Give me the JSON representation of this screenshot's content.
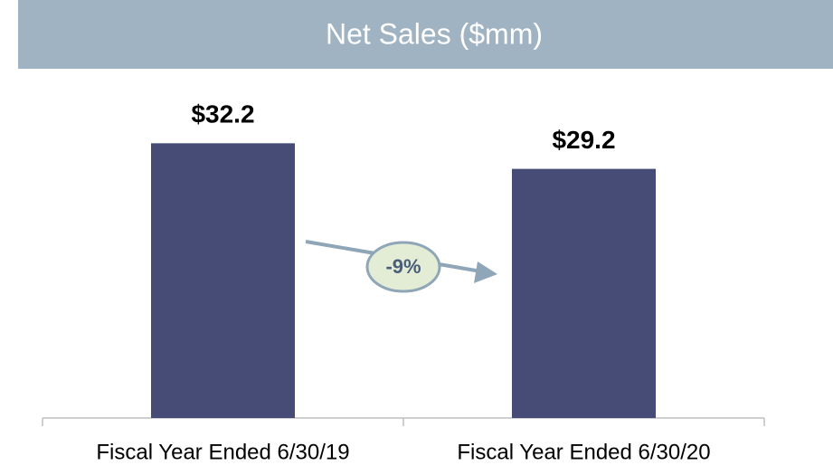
{
  "chart_data": {
    "type": "bar",
    "title": "Net Sales ($mm)",
    "categories": [
      "Fiscal Year Ended 6/30/19",
      "Fiscal Year Ended 6/30/20"
    ],
    "values": [
      32.2,
      29.2
    ],
    "value_labels": [
      "$32.2",
      "$29.2"
    ],
    "color": "#464c75",
    "annotation": "-9%"
  }
}
